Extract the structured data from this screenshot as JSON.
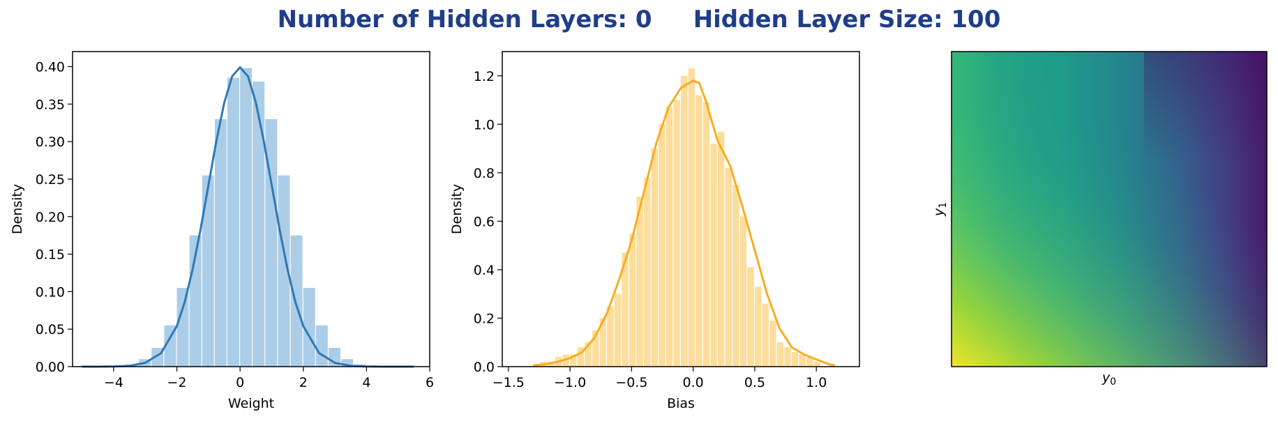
{
  "title": {
    "part1": "Number of Hidden Layers: 0",
    "part2": "Hidden Layer Size: 100"
  },
  "colors": {
    "title": "#1f3d8a",
    "weight": "#2d78b4",
    "weight_fill": "#abcde8",
    "bias": "#f8ad1e",
    "bias_fill": "#fedd9c"
  },
  "chart_data": [
    {
      "type": "bar",
      "subtype": "histogram-with-kde",
      "xlabel": "Weight",
      "ylabel": "Density",
      "xlim": [
        -5.3,
        6.0
      ],
      "ylim": [
        0,
        0.42
      ],
      "xticks": [
        -4,
        -2,
        0,
        2,
        4,
        6
      ],
      "xtick_labels": [
        "−4",
        "−2",
        "0",
        "2",
        "4",
        "6"
      ],
      "yticks": [
        0,
        0.05,
        0.1,
        0.15,
        0.2,
        0.25,
        0.3,
        0.35,
        0.4
      ],
      "ytick_labels": [
        "0.00",
        "0.05",
        "0.10",
        "0.15",
        "0.20",
        "0.25",
        "0.30",
        "0.35",
        "0.40"
      ],
      "grid": false,
      "hist": {
        "bin_edges": [
          -5.2,
          -4.8,
          -4.4,
          -4.0,
          -3.6,
          -3.2,
          -2.8,
          -2.4,
          -2.0,
          -1.6,
          -1.2,
          -0.8,
          -0.4,
          0.0,
          0.4,
          0.8,
          1.2,
          1.6,
          2.0,
          2.4,
          2.8,
          3.2,
          3.6,
          4.0,
          4.4,
          4.8,
          5.2,
          5.6
        ],
        "values": [
          0.0,
          0.0,
          0.0003,
          0.001,
          0.003,
          0.01,
          0.025,
          0.055,
          0.105,
          0.175,
          0.255,
          0.33,
          0.385,
          0.398,
          0.38,
          0.33,
          0.255,
          0.175,
          0.105,
          0.055,
          0.025,
          0.01,
          0.003,
          0.001,
          0.0003,
          0.0,
          0.0
        ]
      },
      "kde": {
        "x": [
          -5.0,
          -4.5,
          -4.0,
          -3.5,
          -3.0,
          -2.5,
          -2.0,
          -1.75,
          -1.5,
          -1.25,
          -1.0,
          -0.75,
          -0.5,
          -0.25,
          0.0,
          0.25,
          0.5,
          0.75,
          1.0,
          1.25,
          1.5,
          1.75,
          2.0,
          2.5,
          3.0,
          3.5,
          4.0,
          4.5,
          5.0,
          5.5
        ],
        "y": [
          0.0,
          0.0,
          0.0002,
          0.001,
          0.005,
          0.018,
          0.054,
          0.086,
          0.13,
          0.183,
          0.242,
          0.301,
          0.352,
          0.387,
          0.399,
          0.387,
          0.352,
          0.301,
          0.242,
          0.183,
          0.13,
          0.086,
          0.054,
          0.018,
          0.005,
          0.001,
          0.0002,
          0.0,
          0.0,
          0.0
        ]
      }
    },
    {
      "type": "bar",
      "subtype": "histogram-with-kde",
      "xlabel": "Bias",
      "ylabel": "Density",
      "xlim": [
        -1.55,
        1.35
      ],
      "ylim": [
        0,
        1.3
      ],
      "xticks": [
        -1.5,
        -1.0,
        -0.5,
        0.0,
        0.5,
        1.0
      ],
      "xtick_labels": [
        "−1.5",
        "−1.0",
        "−0.5",
        "0.0",
        "0.5",
        "1.0"
      ],
      "yticks": [
        0,
        0.2,
        0.4,
        0.6,
        0.8,
        1.0,
        1.2
      ],
      "ytick_labels": [
        "0.0",
        "0.2",
        "0.4",
        "0.6",
        "0.8",
        "1.0",
        "1.2"
      ],
      "grid": false,
      "hist": {
        "bin_edges": [
          -1.3,
          -1.24,
          -1.18,
          -1.12,
          -1.06,
          -1.0,
          -0.94,
          -0.88,
          -0.82,
          -0.76,
          -0.7,
          -0.64,
          -0.58,
          -0.52,
          -0.46,
          -0.4,
          -0.34,
          -0.28,
          -0.22,
          -0.16,
          -0.1,
          -0.04,
          0.02,
          0.08,
          0.14,
          0.2,
          0.26,
          0.32,
          0.38,
          0.44,
          0.5,
          0.56,
          0.62,
          0.68,
          0.74,
          0.8,
          0.86,
          0.92,
          0.98,
          1.04
        ],
        "values": [
          0.01,
          0.02,
          0.02,
          0.04,
          0.05,
          0.05,
          0.08,
          0.1,
          0.15,
          0.2,
          0.25,
          0.3,
          0.47,
          0.55,
          0.7,
          0.78,
          0.9,
          1.0,
          1.07,
          1.1,
          1.2,
          1.23,
          1.12,
          1.09,
          0.92,
          0.97,
          0.82,
          0.75,
          0.62,
          0.41,
          0.33,
          0.26,
          0.19,
          0.1,
          0.08,
          0.06,
          0.05,
          0.04,
          0.02
        ]
      },
      "kde": {
        "x": [
          -1.3,
          -1.2,
          -1.1,
          -1.0,
          -0.9,
          -0.8,
          -0.7,
          -0.6,
          -0.5,
          -0.4,
          -0.3,
          -0.2,
          -0.1,
          0.0,
          0.05,
          0.1,
          0.2,
          0.3,
          0.4,
          0.5,
          0.6,
          0.7,
          0.8,
          0.9,
          1.0,
          1.1,
          1.15
        ],
        "y": [
          0.005,
          0.01,
          0.02,
          0.035,
          0.06,
          0.12,
          0.22,
          0.36,
          0.52,
          0.72,
          0.92,
          1.07,
          1.15,
          1.18,
          1.17,
          1.1,
          0.93,
          0.83,
          0.66,
          0.48,
          0.3,
          0.16,
          0.08,
          0.05,
          0.03,
          0.01,
          0.005
        ]
      }
    },
    {
      "type": "heatmap",
      "xlabel": "y0",
      "ylabel": "y1",
      "xticks": [],
      "yticks": [],
      "colormap": "viridis",
      "grid": false
    }
  ]
}
